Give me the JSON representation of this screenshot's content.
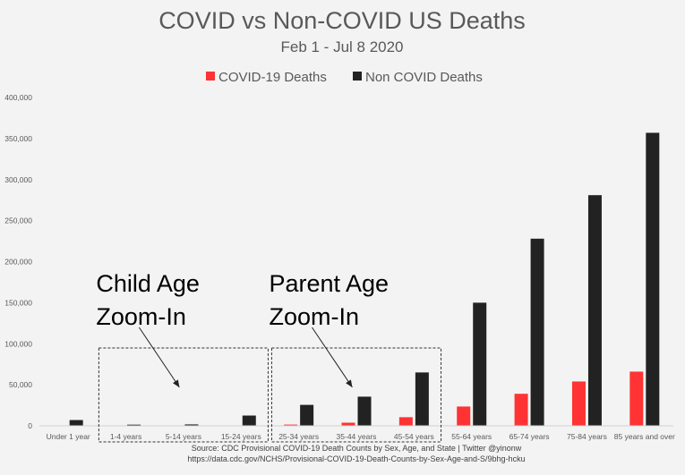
{
  "chart_data": {
    "type": "bar",
    "title": "COVID vs Non-COVID US Deaths",
    "subtitle": "Feb 1 - Jul 8 2020",
    "categories": [
      "Under 1 year",
      "1-4 years",
      "5-14 years",
      "15-24 years",
      "25-34 years",
      "35-44 years",
      "45-54 years",
      "55-64 years",
      "65-74 years",
      "75-84 years",
      "85 years and over"
    ],
    "series": [
      {
        "name": "COVID-19 Deaths",
        "color": "#ff3333",
        "values": [
          10,
          15,
          30,
          400,
          1500,
          3800,
          10500,
          23500,
          39000,
          54000,
          66000
        ]
      },
      {
        "name": "Non COVID Deaths",
        "color": "#222222",
        "values": [
          7000,
          1400,
          1700,
          12500,
          25500,
          35500,
          65000,
          150000,
          228000,
          281000,
          357000
        ]
      }
    ],
    "ylim": [
      0,
      400000
    ],
    "yticks": [
      "0",
      "50,000",
      "100,000",
      "150,000",
      "200,000",
      "250,000",
      "300,000",
      "350,000",
      "400,000"
    ],
    "legend_position": "top",
    "grid": false,
    "annotations": [
      {
        "lines": [
          "Child Age",
          "Zoom-In"
        ],
        "categories": [
          1,
          3
        ]
      },
      {
        "lines": [
          "Parent Age",
          "Zoom-In"
        ],
        "categories": [
          4,
          6
        ]
      }
    ],
    "source_lines": [
      "Source: CDC Provisional COVID-19 Death Counts by Sex, Age, and State | Twitter @yinonw",
      "https://data.cdc.gov/NCHS/Provisional-COVID-19-Death-Counts-by-Sex-Age-and-S/9bhg-hcku"
    ]
  }
}
